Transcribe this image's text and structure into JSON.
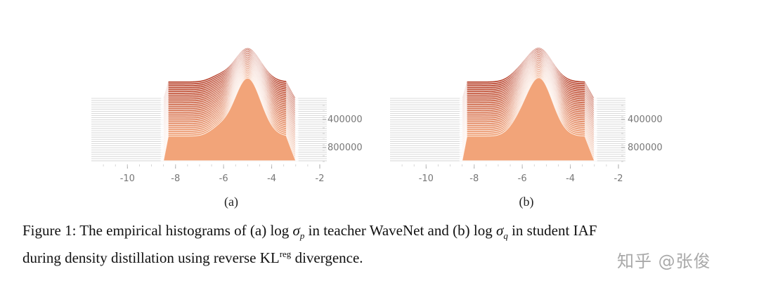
{
  "figure": {
    "panels": [
      {
        "sublabel": "(a)",
        "x_ticks": [
          "-10",
          "-8",
          "-6",
          "-4",
          "-2"
        ],
        "y_ticks": [
          "400000",
          "800000"
        ],
        "x_range": [
          -11.5,
          -2
        ],
        "peak_center": -5.0
      },
      {
        "sublabel": "(b)",
        "x_ticks": [
          "-10",
          "-8",
          "-6",
          "-4",
          "-2"
        ],
        "y_ticks": [
          "400000",
          "800000"
        ],
        "x_range": [
          -11.5,
          -2
        ],
        "peak_center": -5.3
      }
    ],
    "colors": {
      "front": "#f2a479",
      "back": "#b7412b",
      "line": "#cfcfcf"
    }
  },
  "caption": {
    "prefix": "Figure 1: The empirical histograms of (a) ",
    "log1": "log",
    "sigma1": "σ",
    "sub1": "p",
    "middle": " in teacher WaveNet and (b) ",
    "log2": "log",
    "sigma2": "σ",
    "sub2": "q",
    "suffix1": " in student IAF",
    "line2_prefix": "during density distillation using reverse KL",
    "sup": "reg",
    "line2_suffix": " divergence."
  },
  "watermark": "知乎 @张俊"
}
